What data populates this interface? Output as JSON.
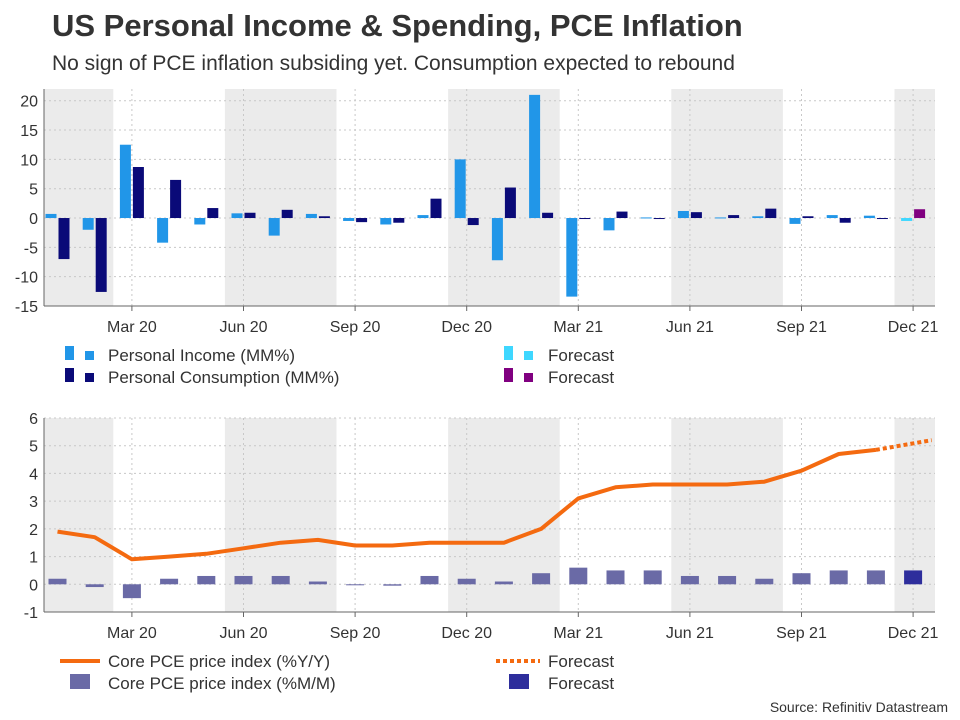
{
  "header": {
    "title": "US Personal Income & Spending, PCE Inflation",
    "subtitle": "No sign of PCE inflation subsiding yet. Consumption expected to rebound"
  },
  "source": "Source: Refinitiv Datastream",
  "colors": {
    "income": "#2196e8",
    "consumption": "#0a0a78",
    "income_forecast": "#3ed7ff",
    "consumption_forecast": "#800080",
    "core_yy": "#f46a10",
    "core_mm": "#6a6aa6",
    "core_mm_forecast": "#2e2e9c",
    "shade": "#ebebeb",
    "grid": "#c8c8c8"
  },
  "chart_data": [
    {
      "type": "bar",
      "title": "Personal Income & Spending",
      "months": [
        "Jan 20",
        "Feb 20",
        "Mar 20",
        "Apr 20",
        "May 20",
        "Jun 20",
        "Jul 20",
        "Aug 20",
        "Sep 20",
        "Oct 20",
        "Nov 20",
        "Dec 20",
        "Jan 21",
        "Feb 21",
        "Mar 21",
        "Apr 21",
        "May 21",
        "Jun 21",
        "Jul 21",
        "Aug 21",
        "Sep 21",
        "Oct 21",
        "Nov 21",
        "Dec 21"
      ],
      "x_tick_labels": [
        "Mar 20",
        "Jun 20",
        "Sep 20",
        "Dec 20",
        "Mar 21",
        "Jun 21",
        "Sep 21",
        "Dec 21"
      ],
      "y_ticks": [
        20,
        15,
        10,
        5,
        0,
        -5,
        -10,
        -15
      ],
      "ylim": [
        -15,
        22
      ],
      "series": [
        {
          "name": "Personal Income (MM%)",
          "values": [
            0.7,
            -2.0,
            12.5,
            -4.2,
            -1.1,
            0.8,
            -3.0,
            0.7,
            -0.5,
            -1.1,
            0.5,
            10.0,
            -7.2,
            21.0,
            -13.4,
            -2.1,
            0.1,
            1.2,
            0.1,
            0.3,
            -1.0,
            0.5,
            0.4,
            -0.5
          ]
        },
        {
          "name": "Personal Consumption (MM%)",
          "values": [
            -7.0,
            -12.6,
            8.7,
            6.5,
            1.7,
            0.9,
            1.4,
            0.3,
            -0.7,
            -0.8,
            3.3,
            -1.2,
            5.2,
            0.9,
            0.0,
            1.1,
            0.0,
            1.0,
            0.5,
            1.6,
            0.3,
            -0.8,
            0.0,
            0.0
          ]
        }
      ],
      "forecast": {
        "month": "Dec 21",
        "income": -0.5,
        "consumption": 1.5
      },
      "legend": [
        {
          "label": "Personal Income (MM%)",
          "color": "#2196e8"
        },
        {
          "label": "Personal Consumption (MM%)",
          "color": "#0a0a78"
        },
        {
          "label": "Forecast",
          "color": "#3ed7ff"
        },
        {
          "label": "Forecast",
          "color": "#800080"
        }
      ]
    },
    {
      "type": "line",
      "title": "Core PCE Inflation",
      "months": [
        "Jan 20",
        "Feb 20",
        "Mar 20",
        "Apr 20",
        "May 20",
        "Jun 20",
        "Jul 20",
        "Aug 20",
        "Sep 20",
        "Oct 20",
        "Nov 20",
        "Dec 20",
        "Jan 21",
        "Feb 21",
        "Mar 21",
        "Apr 21",
        "May 21",
        "Jun 21",
        "Jul 21",
        "Aug 21",
        "Sep 21",
        "Oct 21",
        "Nov 21",
        "Dec 21"
      ],
      "x_tick_labels": [
        "Mar 20",
        "Jun 20",
        "Sep 20",
        "Dec 20",
        "Mar 21",
        "Jun 21",
        "Sep 21",
        "Dec 21"
      ],
      "y_ticks": [
        6,
        5,
        4,
        3,
        2,
        1,
        0,
        -1
      ],
      "ylim": [
        -1,
        6
      ],
      "series": [
        {
          "name": "Core PCE price index (%Y/Y)",
          "values": [
            1.9,
            1.7,
            0.9,
            1.0,
            1.1,
            1.3,
            1.5,
            1.6,
            1.4,
            1.4,
            1.5,
            1.5,
            1.5,
            2.0,
            3.1,
            3.5,
            3.6,
            3.6,
            3.6,
            3.7,
            4.1,
            4.7,
            4.85,
            null
          ]
        },
        {
          "name": "Core PCE price index (%M/M)",
          "values": [
            0.2,
            -0.1,
            -0.5,
            0.2,
            0.3,
            0.3,
            0.3,
            0.1,
            0.0,
            -0.05,
            0.3,
            0.2,
            0.1,
            0.4,
            0.6,
            0.5,
            0.5,
            0.3,
            0.3,
            0.2,
            0.4,
            0.5,
            0.5,
            null
          ]
        }
      ],
      "forecast": {
        "yy_from": 4.85,
        "yy_to": 5.2,
        "mm": 0.5
      },
      "legend": [
        {
          "label": "Core PCE price index (%Y/Y)",
          "color": "#f46a10"
        },
        {
          "label": "Core PCE price index (%M/M)",
          "color": "#6a6aa6"
        },
        {
          "label": "Forecast",
          "color": "#f46a10"
        },
        {
          "label": "Forecast",
          "color": "#2e2e9c"
        }
      ]
    }
  ]
}
